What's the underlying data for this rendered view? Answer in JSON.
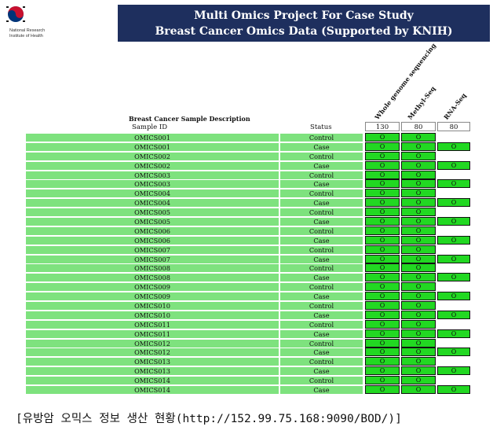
{
  "logo": {
    "org_line1": "National Research",
    "org_line2": "Institute of Health",
    "colors": {
      "red": "#c8102e",
      "blue": "#003478",
      "black": "#1a1a1a"
    }
  },
  "banner": {
    "line1": "Multi Omics Project For Case Study",
    "line2": "Breast Cancer Omics Data (Supported by KNIH)",
    "background": "#1e2f5e"
  },
  "table": {
    "description_title": "Breast Cancer Sample Description",
    "sample_header": "Sample ID",
    "status_header": "Status",
    "omics_columns": [
      {
        "label": "Whole genome sequencing",
        "count": "130"
      },
      {
        "label": "Methyl-Seq",
        "count": "80"
      },
      {
        "label": "RNA-Seq",
        "count": "80"
      }
    ],
    "colors": {
      "row_bg": "#7ee27e",
      "cell_bg": "#22d822"
    },
    "rows": [
      {
        "id": "OMICS001",
        "status": "Control",
        "wgs": "O",
        "methyl": "O",
        "rna": ""
      },
      {
        "id": "OMICS001",
        "status": "Case",
        "wgs": "O",
        "methyl": "O",
        "rna": "O"
      },
      {
        "id": "OMICS002",
        "status": "Control",
        "wgs": "O",
        "methyl": "O",
        "rna": ""
      },
      {
        "id": "OMICS002",
        "status": "Case",
        "wgs": "O",
        "methyl": "O",
        "rna": "O"
      },
      {
        "id": "OMICS003",
        "status": "Control",
        "wgs": "O",
        "methyl": "O",
        "rna": ""
      },
      {
        "id": "OMICS003",
        "status": "Case",
        "wgs": "O",
        "methyl": "O",
        "rna": "O"
      },
      {
        "id": "OMICS004",
        "status": "Control",
        "wgs": "O",
        "methyl": "O",
        "rna": ""
      },
      {
        "id": "OMICS004",
        "status": "Case",
        "wgs": "O",
        "methyl": "O",
        "rna": "O"
      },
      {
        "id": "OMICS005",
        "status": "Control",
        "wgs": "O",
        "methyl": "O",
        "rna": ""
      },
      {
        "id": "OMICS005",
        "status": "Case",
        "wgs": "O",
        "methyl": "O",
        "rna": "O"
      },
      {
        "id": "OMICS006",
        "status": "Control",
        "wgs": "O",
        "methyl": "O",
        "rna": ""
      },
      {
        "id": "OMICS006",
        "status": "Case",
        "wgs": "O",
        "methyl": "O",
        "rna": "O"
      },
      {
        "id": "OMICS007",
        "status": "Control",
        "wgs": "O",
        "methyl": "O",
        "rna": ""
      },
      {
        "id": "OMICS007",
        "status": "Case",
        "wgs": "O",
        "methyl": "O",
        "rna": "O"
      },
      {
        "id": "OMICS008",
        "status": "Control",
        "wgs": "O",
        "methyl": "O",
        "rna": ""
      },
      {
        "id": "OMICS008",
        "status": "Case",
        "wgs": "O",
        "methyl": "O",
        "rna": "O"
      },
      {
        "id": "OMICS009",
        "status": "Control",
        "wgs": "O",
        "methyl": "O",
        "rna": ""
      },
      {
        "id": "OMICS009",
        "status": "Case",
        "wgs": "O",
        "methyl": "O",
        "rna": "O"
      },
      {
        "id": "OMICS010",
        "status": "Control",
        "wgs": "O",
        "methyl": "O",
        "rna": ""
      },
      {
        "id": "OMICS010",
        "status": "Case",
        "wgs": "O",
        "methyl": "O",
        "rna": "O"
      },
      {
        "id": "OMICS011",
        "status": "Control",
        "wgs": "O",
        "methyl": "O",
        "rna": ""
      },
      {
        "id": "OMICS011",
        "status": "Case",
        "wgs": "O",
        "methyl": "O",
        "rna": "O"
      },
      {
        "id": "OMICS012",
        "status": "Control",
        "wgs": "O",
        "methyl": "O",
        "rna": ""
      },
      {
        "id": "OMICS012",
        "status": "Case",
        "wgs": "O",
        "methyl": "O",
        "rna": "O"
      },
      {
        "id": "OMICS013",
        "status": "Control",
        "wgs": "O",
        "methyl": "O",
        "rna": ""
      },
      {
        "id": "OMICS013",
        "status": "Case",
        "wgs": "O",
        "methyl": "O",
        "rna": "O"
      },
      {
        "id": "OMICS014",
        "status": "Control",
        "wgs": "O",
        "methyl": "O",
        "rna": ""
      },
      {
        "id": "OMICS014",
        "status": "Case",
        "wgs": "O",
        "methyl": "O",
        "rna": "O"
      }
    ]
  },
  "caption": "[유방암 오믹스 정보 생산 현황(http://152.99.75.168:9090/BOD/)]"
}
